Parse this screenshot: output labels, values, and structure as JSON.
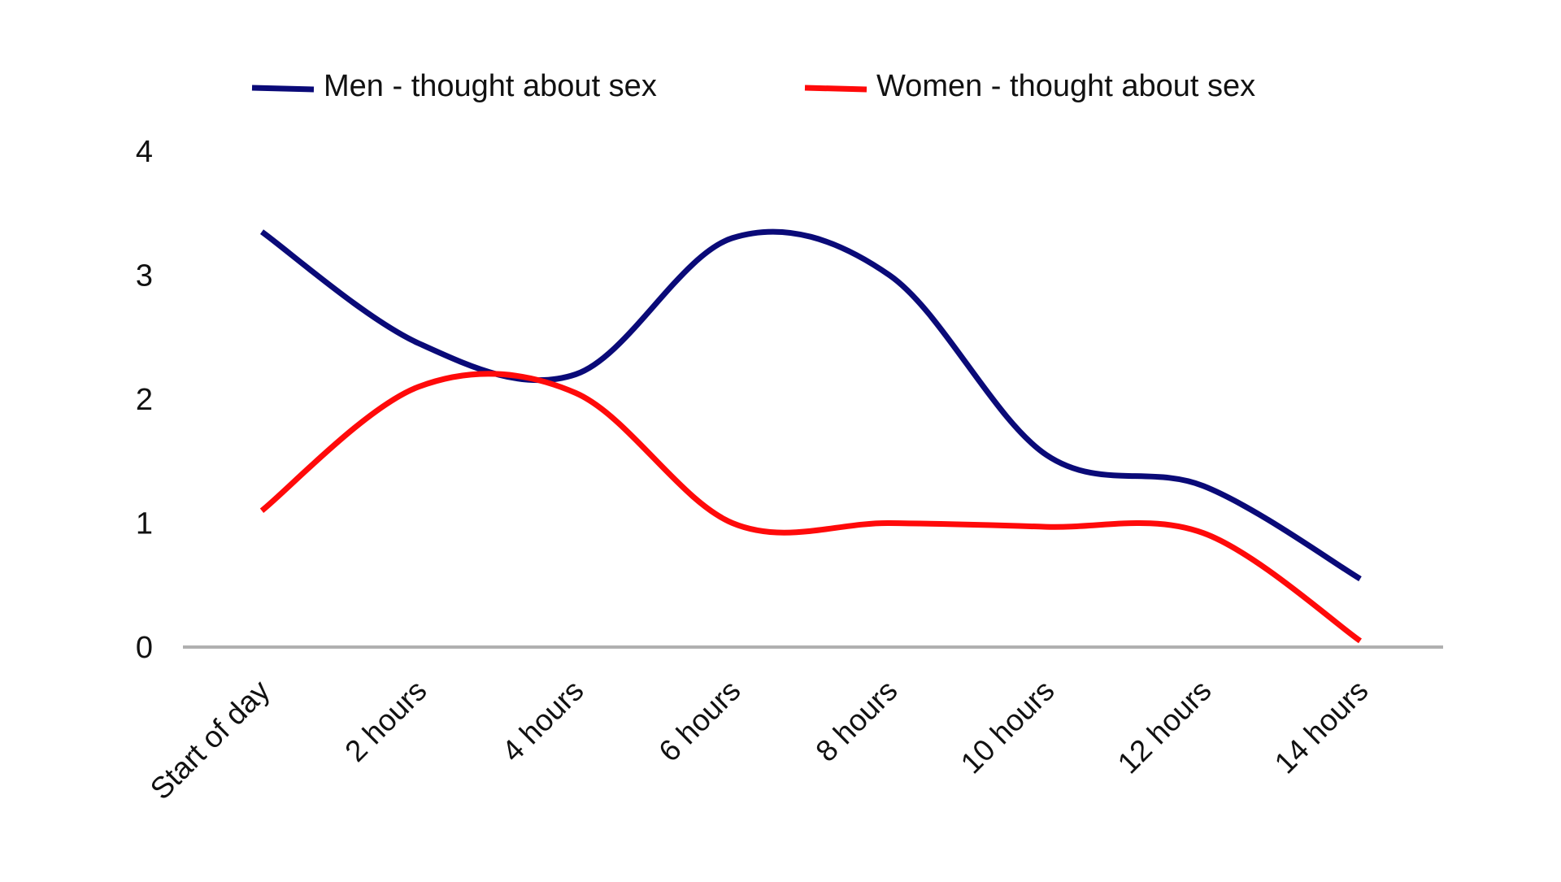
{
  "chart_data": {
    "type": "line",
    "title": "",
    "xlabel": "",
    "ylabel": "",
    "categories": [
      "Start of day",
      "2 hours",
      "4 hours",
      "6 hours",
      "8 hours",
      "10 hours",
      "12 hours",
      "14 hours"
    ],
    "y_ticks": [
      "0",
      "1",
      "2",
      "3",
      "4"
    ],
    "ylim": [
      0,
      4
    ],
    "grid": false,
    "legend_position": "top",
    "series": [
      {
        "name": "Men - thought about sex",
        "color": "#0a0a78",
        "values": [
          3.35,
          2.45,
          2.2,
          3.3,
          3.0,
          1.55,
          1.3,
          0.55
        ]
      },
      {
        "name": "Women - thought about sex",
        "color": "#ff0a0a",
        "values": [
          1.1,
          2.1,
          2.05,
          1.0,
          1.0,
          0.97,
          0.92,
          0.05
        ]
      }
    ]
  }
}
